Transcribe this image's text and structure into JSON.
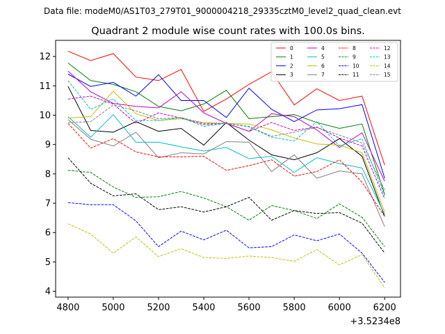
{
  "suptitle": "Data file: modeM0/AS1T03_279T01_9000004218_29335cztM0_level2_quad_clean.evt",
  "chart_data": {
    "type": "line",
    "title": "Quadrant 2 module wise count rates with 100.0s bins.",
    "xlabel": "",
    "ylabel": "",
    "x_offset_label": "+3.5234e8",
    "x": [
      4800,
      4900,
      5000,
      5100,
      5200,
      5300,
      5400,
      5500,
      5600,
      5700,
      5800,
      5900,
      6000,
      6100,
      6200
    ],
    "xlim": [
      4745,
      6270
    ],
    "ylim": [
      3.8,
      12.55
    ],
    "xticks": [
      4800,
      5000,
      5200,
      5400,
      5600,
      5800,
      6000,
      6200
    ],
    "yticks": [
      4,
      5,
      6,
      7,
      8,
      9,
      10,
      11,
      12
    ],
    "grid": false,
    "legend_position": "top-right",
    "series": [
      {
        "name": "0",
        "color": "#ff0000",
        "dash": "solid",
        "values": [
          12.18,
          11.86,
          12.1,
          11.3,
          11.18,
          11.56,
          10.13,
          10.55,
          11.05,
          11.48,
          10.35,
          10.9,
          10.5,
          10.65,
          8.3
        ]
      },
      {
        "name": "1",
        "color": "#008000",
        "dash": "solid",
        "values": [
          11.78,
          11.18,
          11.05,
          10.8,
          10.3,
          10.15,
          10.38,
          10.85,
          9.88,
          9.95,
          10.02,
          9.75,
          9.55,
          9.7,
          7.3
        ]
      },
      {
        "name": "2",
        "color": "#0000ff",
        "dash": "solid",
        "values": [
          11.4,
          10.98,
          11.12,
          10.65,
          11.38,
          10.5,
          10.5,
          9.92,
          10.92,
          10.2,
          9.78,
          10.18,
          10.22,
          10.36,
          7.85
        ]
      },
      {
        "name": "3",
        "color": "#000000",
        "dash": "solid",
        "values": [
          10.98,
          9.48,
          9.42,
          9.78,
          9.45,
          9.55,
          8.98,
          9.75,
          9.15,
          8.65,
          8.48,
          8.72,
          9.2,
          8.6,
          6.55
        ]
      },
      {
        "name": "4",
        "color": "#bf00bf",
        "dash": "solid",
        "values": [
          11.5,
          10.8,
          10.4,
          10.3,
          10.25,
          10.8,
          10.08,
          9.72,
          9.45,
          10.05,
          9.95,
          9.5,
          8.9,
          9.4,
          7.75
        ]
      },
      {
        "name": "5",
        "color": "#00bfbf",
        "dash": "solid",
        "values": [
          9.95,
          9.25,
          10.02,
          9.08,
          9.08,
          8.92,
          8.78,
          8.9,
          8.52,
          8.6,
          8.05,
          8.55,
          8.35,
          8.2,
          6.62
        ]
      },
      {
        "name": "6",
        "color": "#bfbf00",
        "dash": "solid",
        "values": [
          9.9,
          9.95,
          10.82,
          10.05,
          9.82,
          9.88,
          9.75,
          9.72,
          9.7,
          9.5,
          9.22,
          9.02,
          8.98,
          8.72,
          6.7
        ]
      },
      {
        "name": "7",
        "color": "#808080",
        "dash": "solid",
        "values": [
          9.85,
          9.18,
          8.95,
          9.42,
          8.55,
          8.72,
          8.68,
          9.1,
          9.08,
          8.08,
          8.65,
          7.85,
          8.1,
          8.0,
          6.2
        ]
      },
      {
        "name": "8",
        "color": "#ff0000",
        "dash": "dashed",
        "values": [
          9.72,
          8.88,
          9.2,
          8.75,
          8.58,
          8.58,
          8.6,
          8.12,
          8.28,
          8.48,
          7.92,
          8.08,
          8.48,
          7.72,
          6.55
        ]
      },
      {
        "name": "9",
        "color": "#008000",
        "dash": "dashed",
        "values": [
          8.12,
          8.05,
          7.55,
          7.2,
          7.22,
          7.4,
          7.18,
          6.88,
          6.42,
          6.92,
          6.75,
          6.48,
          6.98,
          6.52,
          5.52
        ]
      },
      {
        "name": "10",
        "color": "#0000ff",
        "dash": "dashed",
        "values": [
          7.02,
          6.95,
          6.95,
          6.4,
          5.52,
          6.05,
          5.75,
          6.08,
          5.48,
          5.52,
          5.92,
          5.72,
          5.95,
          5.3,
          4.3
        ]
      },
      {
        "name": "11",
        "color": "#000000",
        "dash": "dashed",
        "values": [
          8.55,
          7.68,
          7.25,
          7.32,
          6.78,
          6.88,
          6.7,
          6.88,
          7.2,
          6.42,
          6.75,
          6.65,
          6.68,
          6.32,
          5.3
        ]
      },
      {
        "name": "12",
        "color": "#bf00bf",
        "dash": "dashed",
        "values": [
          10.55,
          10.65,
          10.38,
          9.72,
          10.08,
          9.9,
          9.68,
          9.72,
          9.45,
          9.75,
          9.48,
          9.6,
          9.22,
          8.95,
          7.15
        ]
      },
      {
        "name": "13",
        "color": "#00bfbf",
        "dash": "dashed",
        "values": [
          11.18,
          10.2,
          10.55,
          9.82,
          9.82,
          9.92,
          9.62,
          9.72,
          9.6,
          9.25,
          9.12,
          9.78,
          8.95,
          9.2,
          7.25
        ]
      },
      {
        "name": "14",
        "color": "#bfbf00",
        "dash": "dashed",
        "values": [
          6.3,
          5.95,
          5.3,
          5.85,
          5.18,
          5.45,
          5.15,
          5.12,
          5.2,
          5.15,
          5.02,
          5.42,
          4.9,
          5.25,
          4.12
        ]
      },
      {
        "name": "15",
        "color": "#808080",
        "dash": "dashed",
        "values": [
          9.75,
          9.78,
          10.35,
          10.15,
          9.88,
          9.92,
          9.72,
          9.72,
          9.62,
          9.28,
          9.42,
          9.58,
          9.32,
          9.05,
          7.45
        ]
      }
    ]
  }
}
